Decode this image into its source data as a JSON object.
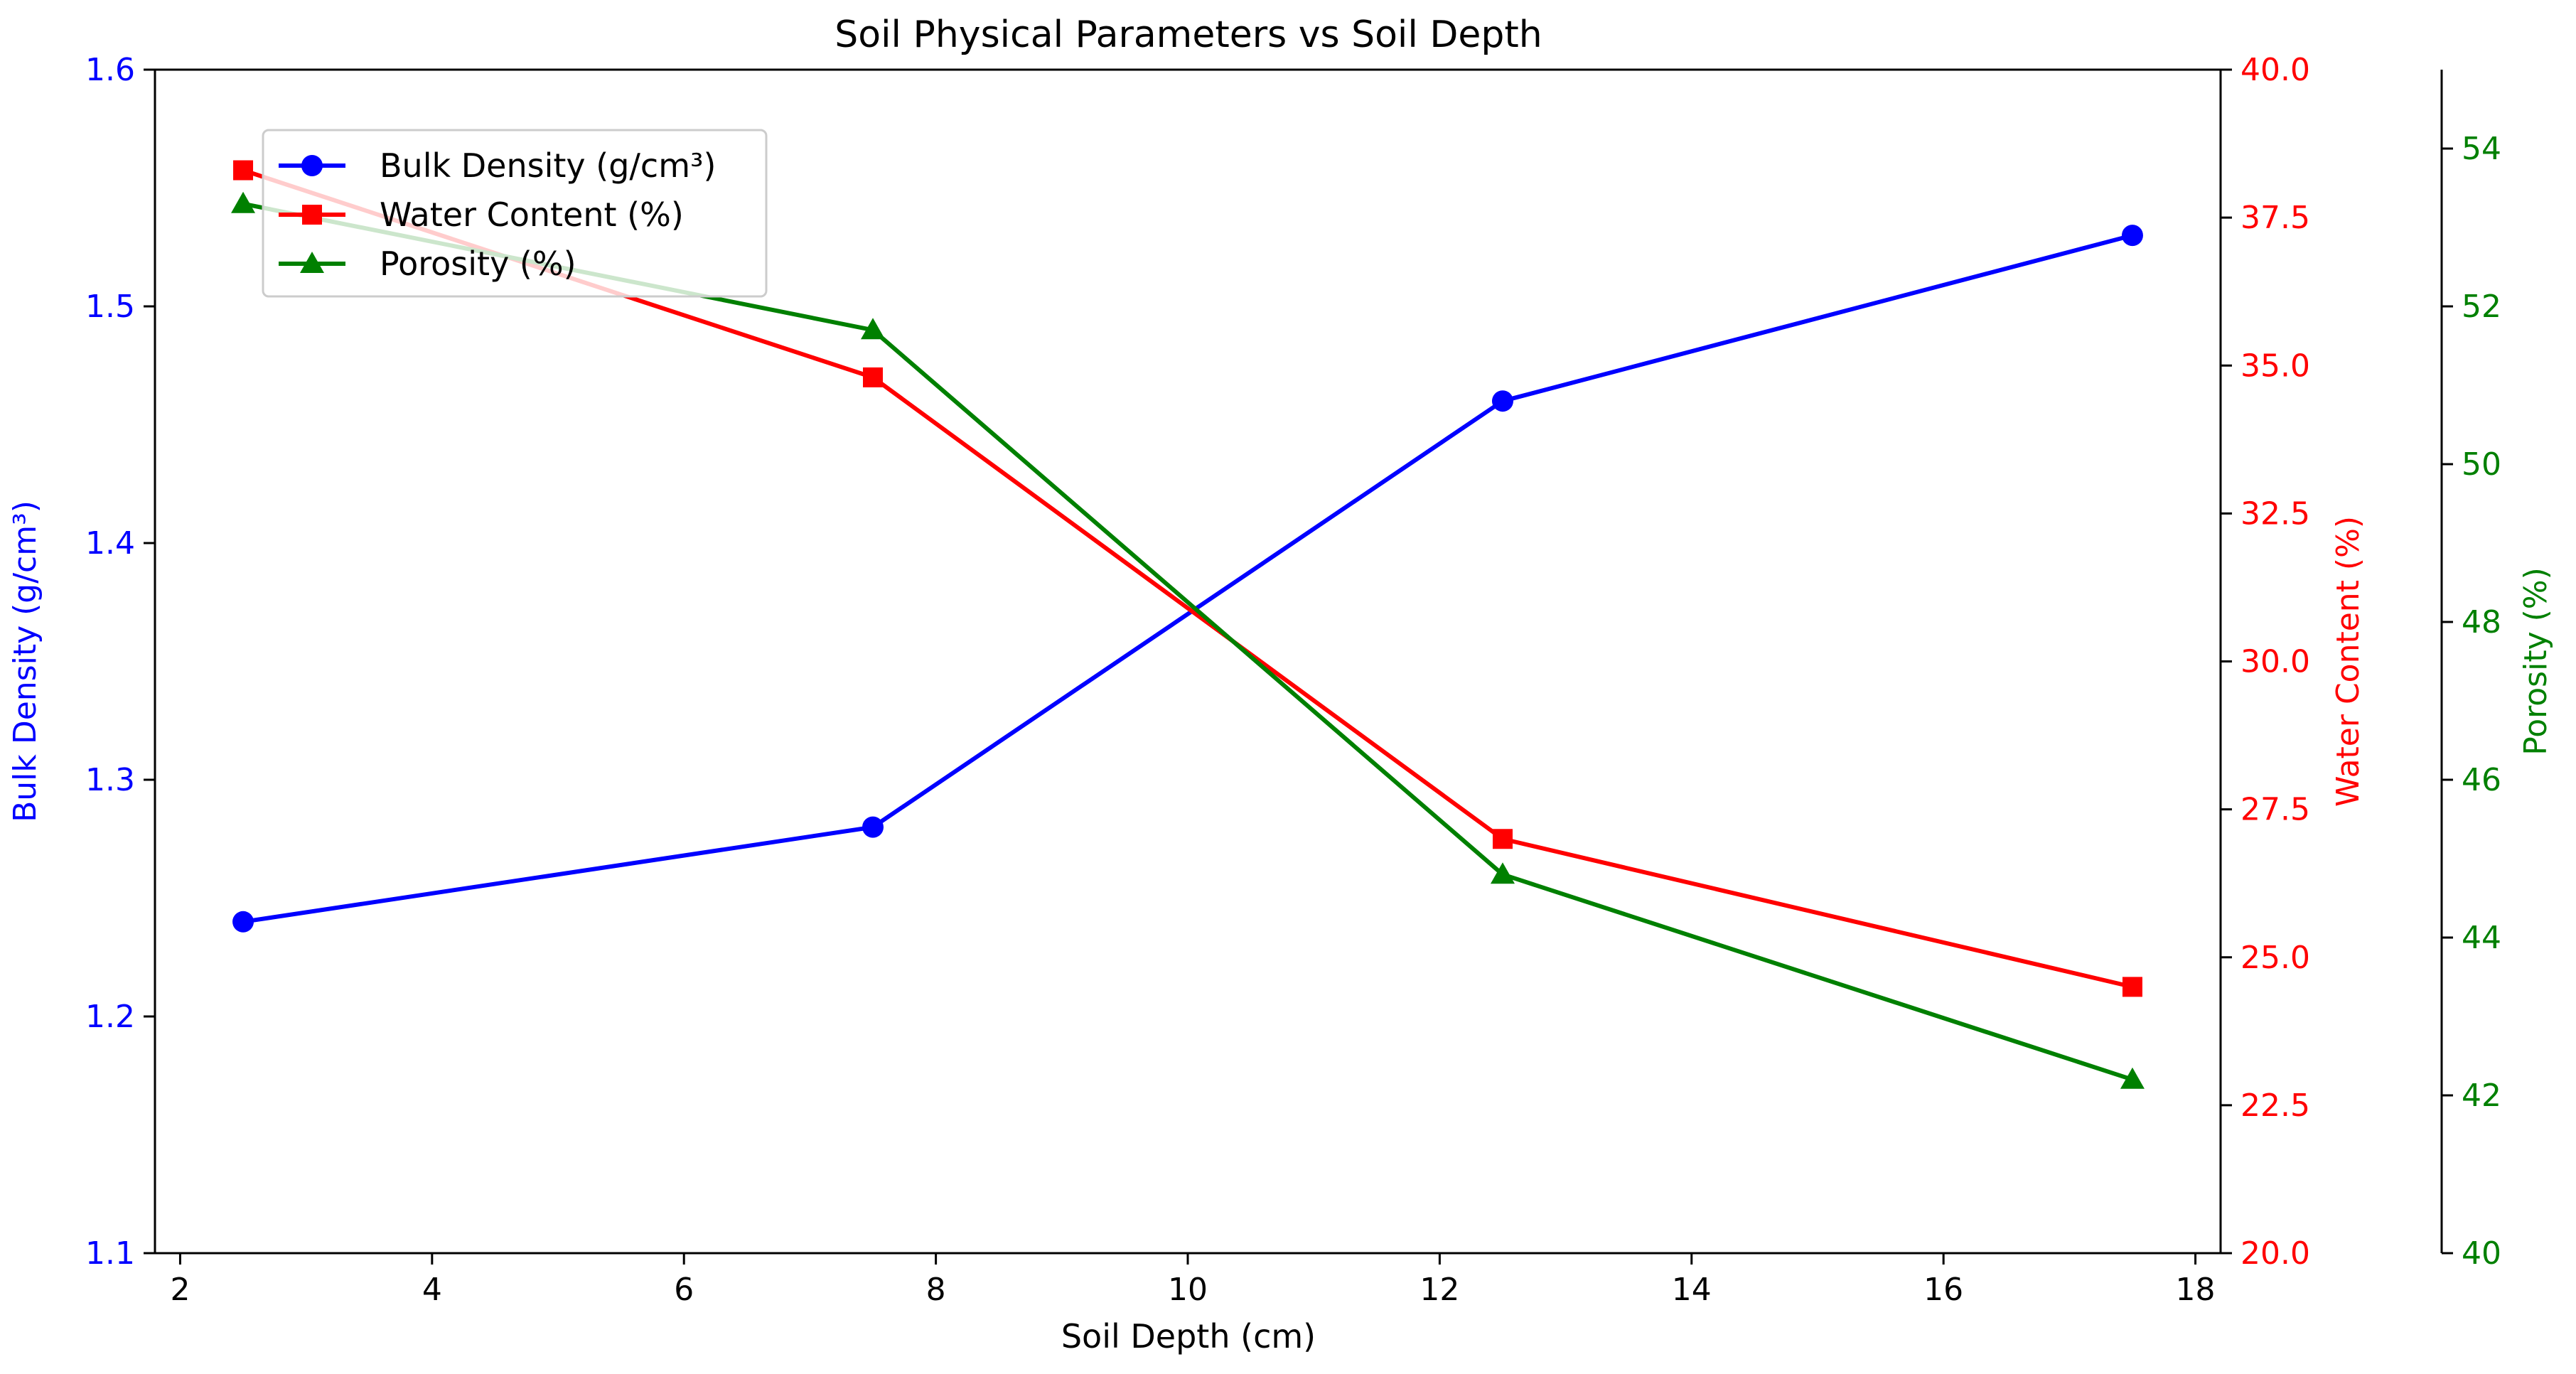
{
  "chart_data": {
    "type": "line",
    "title": "Soil Physical Parameters vs Soil Depth",
    "xlabel": "Soil Depth (cm)",
    "xlim": [
      1.8,
      18.2
    ],
    "xticks": [
      2,
      4,
      6,
      8,
      10,
      12,
      14,
      16,
      18
    ],
    "x": [
      2.5,
      7.5,
      12.5,
      17.5
    ],
    "grid": false,
    "legend_position": "top-left",
    "axes": [
      {
        "id": "bulk",
        "side": "left",
        "label": "Bulk Density (g/cm³)",
        "color": "#0000ff",
        "ylim": [
          1.1,
          1.6
        ],
        "ticks": [
          1.1,
          1.2,
          1.3,
          1.4,
          1.5,
          1.6
        ],
        "decimals": 1
      },
      {
        "id": "water",
        "side": "right",
        "label": "Water Content (%)",
        "color": "#ff0000",
        "ylim": [
          20.0,
          40.0
        ],
        "ticks": [
          20.0,
          22.5,
          25.0,
          27.5,
          30.0,
          32.5,
          35.0,
          37.5,
          40.0
        ],
        "decimals": 1
      },
      {
        "id": "porosity",
        "side": "right-outer",
        "label": "Porosity (%)",
        "color": "#008000",
        "ylim": [
          40,
          55
        ],
        "ticks": [
          40,
          42,
          44,
          46,
          48,
          50,
          52,
          54
        ],
        "decimals": 0
      }
    ],
    "series": [
      {
        "name": "Bulk Density (g/cm³)",
        "axis": "bulk",
        "color": "#0000ff",
        "marker": "circle",
        "values": [
          1.24,
          1.28,
          1.46,
          1.53
        ]
      },
      {
        "name": "Water Content (%)",
        "axis": "water",
        "color": "#ff0000",
        "marker": "square",
        "values": [
          38.3,
          34.8,
          27.0,
          24.5
        ]
      },
      {
        "name": "Porosity (%)",
        "axis": "porosity",
        "color": "#008000",
        "marker": "triangle",
        "values": [
          53.3,
          51.7,
          44.8,
          42.2
        ]
      }
    ]
  }
}
